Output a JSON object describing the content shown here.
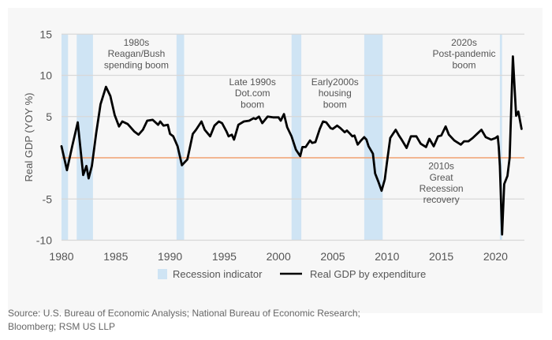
{
  "chart_data": {
    "type": "line",
    "title": "",
    "xlabel": "",
    "ylabel": "Real GDP (YOY %)",
    "xlim": [
      1980,
      2022.5
    ],
    "ylim": [
      -10,
      15
    ],
    "xticks": [
      1980,
      1985,
      1990,
      1995,
      2000,
      2005,
      2010,
      2015,
      2020
    ],
    "yticks": [
      -10,
      -5,
      5,
      10,
      15
    ],
    "ytick_labels": [
      "-10",
      "-5",
      "5",
      "10",
      "15"
    ],
    "xtick_labels": [
      "1980",
      "1985",
      "1990",
      "1995",
      "2000",
      "2005",
      "2010",
      "2015",
      "2020"
    ],
    "grid": true,
    "zero_line": {
      "value": 0,
      "color": "#f0a070"
    },
    "legend": {
      "placement": "bottom-center",
      "items": [
        {
          "label": "Recession indicator",
          "kind": "area",
          "color": "#cfe4f4"
        },
        {
          "label": "Real GDP by expenditure",
          "kind": "line",
          "color": "#000000"
        }
      ]
    },
    "recessions": [
      {
        "start": 1980.0,
        "end": 1980.6
      },
      {
        "start": 1981.4,
        "end": 1982.9
      },
      {
        "start": 1990.6,
        "end": 1991.3
      },
      {
        "start": 2001.2,
        "end": 2002.1
      },
      {
        "start": 2007.9,
        "end": 2009.6
      },
      {
        "start": 2020.4,
        "end": 2020.6
      }
    ],
    "series": [
      {
        "name": "Real GDP by expenditure",
        "color": "#000000",
        "x": [
          1980.0,
          1980.5,
          1981.0,
          1981.5,
          1982.0,
          1982.3,
          1982.5,
          1982.8,
          1983.2,
          1983.6,
          1984.1,
          1984.5,
          1984.9,
          1985.3,
          1985.6,
          1986.1,
          1986.7,
          1987.1,
          1987.5,
          1987.9,
          1988.4,
          1988.9,
          1989.1,
          1989.4,
          1989.8,
          1990.0,
          1990.3,
          1990.7,
          1991.1,
          1991.6,
          1992.1,
          1992.4,
          1992.9,
          1993.2,
          1993.7,
          1994.1,
          1994.5,
          1994.8,
          1995.2,
          1995.4,
          1995.7,
          1995.9,
          1996.3,
          1996.8,
          1997.3,
          1997.7,
          1997.9,
          1998.2,
          1998.5,
          1999.0,
          1999.5,
          2000.0,
          2000.2,
          2000.5,
          2000.8,
          2001.2,
          2001.6,
          2002.0,
          2002.2,
          2002.5,
          2002.9,
          2003.1,
          2003.4,
          2003.8,
          2004.1,
          2004.4,
          2004.8,
          2005.0,
          2005.4,
          2005.7,
          2006.1,
          2006.3,
          2006.6,
          2006.8,
          2007.0,
          2007.3,
          2007.6,
          2007.9,
          2008.1,
          2008.3,
          2008.7,
          2008.9,
          2009.2,
          2009.5,
          2009.8,
          2010.0,
          2010.3,
          2010.8,
          2011.1,
          2011.3,
          2011.8,
          2012.2,
          2012.7,
          2013.1,
          2013.6,
          2013.9,
          2014.3,
          2014.7,
          2015.0,
          2015.4,
          2015.7,
          2016.2,
          2016.8,
          2017.1,
          2017.5,
          2017.9,
          2018.3,
          2018.7,
          2019.1,
          2019.6,
          2020.0,
          2020.2,
          2020.3,
          2020.4,
          2020.6,
          2020.8,
          2021.1,
          2021.3,
          2021.6,
          2021.9,
          2022.1,
          2022.4
        ],
        "values": [
          1.4,
          -1.5,
          1.5,
          4.3,
          -2.1,
          -1.0,
          -2.5,
          -1.0,
          3.0,
          6.5,
          8.6,
          7.5,
          5.2,
          3.8,
          4.4,
          4.1,
          3.2,
          2.8,
          3.4,
          4.5,
          4.6,
          4.0,
          4.4,
          3.9,
          4.0,
          2.9,
          2.6,
          1.4,
          -0.9,
          -0.2,
          2.9,
          3.4,
          4.4,
          3.4,
          2.6,
          3.9,
          4.4,
          4.2,
          3.2,
          2.6,
          2.8,
          2.2,
          4.0,
          4.4,
          4.5,
          4.8,
          4.7,
          5.0,
          4.2,
          5.0,
          4.9,
          4.9,
          4.5,
          5.3,
          3.7,
          2.6,
          1.0,
          0.2,
          1.3,
          1.3,
          2.1,
          1.8,
          1.9,
          3.5,
          4.4,
          4.3,
          3.6,
          3.5,
          3.9,
          3.6,
          3.1,
          3.3,
          2.9,
          2.6,
          2.7,
          1.6,
          2.1,
          2.5,
          2.2,
          1.4,
          0.5,
          -1.9,
          -2.9,
          -4.0,
          -2.6,
          -0.5,
          2.4,
          3.4,
          2.7,
          2.3,
          1.2,
          2.6,
          2.6,
          1.7,
          1.3,
          2.3,
          1.4,
          2.6,
          2.7,
          3.8,
          2.8,
          2.1,
          1.6,
          2.0,
          2.0,
          2.4,
          2.9,
          3.4,
          2.5,
          2.2,
          2.4,
          2.6,
          1.3,
          -1.0,
          -9.3,
          -3.2,
          -2.2,
          0.0,
          12.3,
          5.1,
          5.6,
          3.5
        ]
      }
    ],
    "annotations": [
      {
        "year": 1986.9,
        "value": 13.6,
        "lines": [
          "1980s",
          "Reagan/Bush",
          "spending boom"
        ]
      },
      {
        "year": 1997.6,
        "value": 8.8,
        "lines": [
          "Late 1990s",
          "Dot.com",
          "boom"
        ]
      },
      {
        "year": 2005.2,
        "value": 8.8,
        "lines": [
          "Early2000s",
          "housing",
          "boom"
        ]
      },
      {
        "year": 2015.0,
        "value": -1.4,
        "lines": [
          "2010s",
          "Great",
          "Recession",
          "recovery"
        ]
      },
      {
        "year": 2017.1,
        "value": 13.6,
        "lines": [
          "2020s",
          "Post-pandemic",
          "boom"
        ]
      }
    ]
  },
  "footer": {
    "source_line1": "Source: U.S. Bureau of Economic Analysis; National Bureau of Economic Research;",
    "source_line2": "Bloomberg; RSM US LLP"
  }
}
